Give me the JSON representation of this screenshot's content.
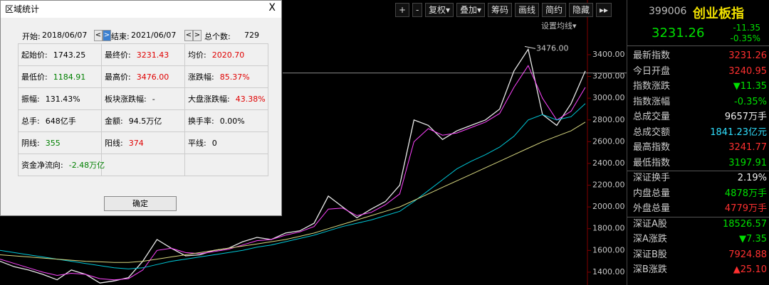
{
  "toolbar": [
    "+",
    "-",
    "复权▾",
    "叠加▾",
    "筹码",
    "画线",
    "简约",
    "隐藏",
    "▸▸"
  ],
  "ma_setting": "设置均线▾",
  "price_chart": {
    "ylim": [
      1282,
      3903
    ],
    "yticks": [
      1400,
      1600,
      1800,
      2000,
      2200,
      2400,
      2600,
      2800,
      3000,
      3200,
      3400
    ],
    "yticks_labels": [
      "1400.00",
      "1600.00",
      "1800.00",
      "2000.00",
      "2200.00",
      "2400.00",
      "2600.00",
      "2800.00",
      "3000.00",
      "3200.00",
      "3400.00"
    ],
    "last": 3231.26,
    "annotation": {
      "value": 3476,
      "label": "3476.00"
    },
    "lines": [
      {
        "color": "#e8e8e8",
        "values": [
          1500,
          1450,
          1420,
          1380,
          1330,
          1420,
          1380,
          1300,
          1320,
          1350,
          1500,
          1700,
          1620,
          1550,
          1560,
          1600,
          1620,
          1680,
          1720,
          1700,
          1760,
          1780,
          1850,
          2100,
          2000,
          1900,
          1980,
          2050,
          2200,
          2800,
          2750,
          2620,
          2700,
          2750,
          2800,
          2900,
          3250,
          3450,
          2850,
          2750,
          2950,
          3250
        ]
      },
      {
        "color": "#ff44ff",
        "values": [
          1520,
          1480,
          1440,
          1400,
          1370,
          1390,
          1380,
          1340,
          1330,
          1340,
          1420,
          1600,
          1620,
          1580,
          1570,
          1590,
          1610,
          1650,
          1690,
          1700,
          1740,
          1770,
          1820,
          1980,
          1990,
          1920,
          1950,
          2020,
          2120,
          2600,
          2720,
          2660,
          2680,
          2730,
          2780,
          2860,
          3100,
          3300,
          3000,
          2800,
          2880,
          3100
        ]
      },
      {
        "color": "#00c8d8",
        "values": [
          1600,
          1580,
          1560,
          1540,
          1520,
          1500,
          1480,
          1460,
          1440,
          1430,
          1440,
          1470,
          1500,
          1520,
          1540,
          1560,
          1580,
          1600,
          1630,
          1650,
          1680,
          1710,
          1740,
          1780,
          1820,
          1850,
          1880,
          1920,
          1960,
          2050,
          2150,
          2250,
          2350,
          2420,
          2480,
          2550,
          2650,
          2800,
          2850,
          2800,
          2830,
          2950
        ]
      },
      {
        "color": "#d8d880",
        "values": [
          1560,
          1550,
          1540,
          1530,
          1520,
          1510,
          1500,
          1495,
          1490,
          1490,
          1500,
          1520,
          1540,
          1560,
          1580,
          1600,
          1620,
          1640,
          1660,
          1680,
          1700,
          1730,
          1760,
          1800,
          1840,
          1880,
          1920,
          1960,
          2000,
          2060,
          2120,
          2180,
          2240,
          2300,
          2360,
          2420,
          2480,
          2540,
          2600,
          2650,
          2700,
          2780
        ]
      }
    ]
  },
  "dialog": {
    "title": "区域统计",
    "close": "X",
    "start_label": "开始:",
    "start": "2018/06/07",
    "end_label": "结束:",
    "end": "2021/06/07",
    "prev": "<",
    "next": ">",
    "count_label": "总个数:",
    "count": "729",
    "cells": [
      {
        "label": "起始价:",
        "value": "1743.25",
        "color": "#000"
      },
      {
        "label": "最终价:",
        "value": "3231.43",
        "color": "#e00000"
      },
      {
        "label": "均价:",
        "value": "2020.70",
        "color": "#e00000"
      },
      {
        "label": "最低价:",
        "value": "1184.91",
        "color": "#008000"
      },
      {
        "label": "最高价:",
        "value": "3476.00",
        "color": "#e00000"
      },
      {
        "label": "涨跌幅:",
        "value": "85.37%",
        "color": "#e00000"
      },
      {
        "label": "振幅:",
        "value": "131.43%",
        "color": "#000"
      },
      {
        "label": "板块涨跌幅:",
        "value": "-",
        "color": "#000"
      },
      {
        "label": "大盘涨跌幅:",
        "value": "43.38%",
        "color": "#e00000"
      },
      {
        "label": "总手:",
        "value": "648亿手",
        "color": "#000"
      },
      {
        "label": "金额:",
        "value": "94.5万亿",
        "color": "#000"
      },
      {
        "label": "换手率:",
        "value": "0.00%",
        "color": "#000"
      },
      {
        "label": "阴线:",
        "value": "355",
        "color": "#008000"
      },
      {
        "label": "阳线:",
        "value": "374",
        "color": "#e00000"
      },
      {
        "label": "平线:",
        "value": "0",
        "color": "#000"
      },
      {
        "label": "资金净流向:",
        "value": "-2.48万亿",
        "color": "#008000"
      }
    ],
    "ok": "确定"
  },
  "quote": {
    "code": "399006",
    "name": "创业板指",
    "price": "3231.26",
    "change": "-11.35",
    "pct": "-0.35%",
    "rows": [
      {
        "label": "最新指数",
        "value": "3231.26",
        "color": "#ff3030"
      },
      {
        "label": "今日开盘",
        "value": "3240.95",
        "color": "#ff3030"
      },
      {
        "label": "指数涨跌",
        "value": "▼11.35",
        "color": "#00e000"
      },
      {
        "label": "指数涨幅",
        "value": "-0.35%",
        "color": "#00e000"
      },
      {
        "label": "总成交量",
        "value": "9657万手",
        "color": "#f0f0f0"
      },
      {
        "label": "总成交额",
        "value": "1841.23亿元",
        "color": "#30e0ff"
      },
      {
        "label": "最高指数",
        "value": "3241.77",
        "color": "#ff3030"
      },
      {
        "label": "最低指数",
        "value": "3197.91",
        "color": "#00e000"
      },
      {
        "label": "深证换手",
        "value": "2.19%",
        "color": "#f0f0f0"
      },
      {
        "label": "内盘总量",
        "value": "4878万手",
        "color": "#00e000"
      },
      {
        "label": "外盘总量",
        "value": "4779万手",
        "color": "#ff3030"
      },
      {
        "label": "深证A股",
        "value": "18526.57",
        "color": "#00e000"
      },
      {
        "label": "深A涨跌",
        "value": "▼7.35",
        "color": "#00e000"
      },
      {
        "label": "深证B股",
        "value": "7924.88",
        "color": "#ff3030"
      },
      {
        "label": "深B涨跌",
        "value": "▲25.10",
        "color": "#ff3030"
      }
    ]
  }
}
